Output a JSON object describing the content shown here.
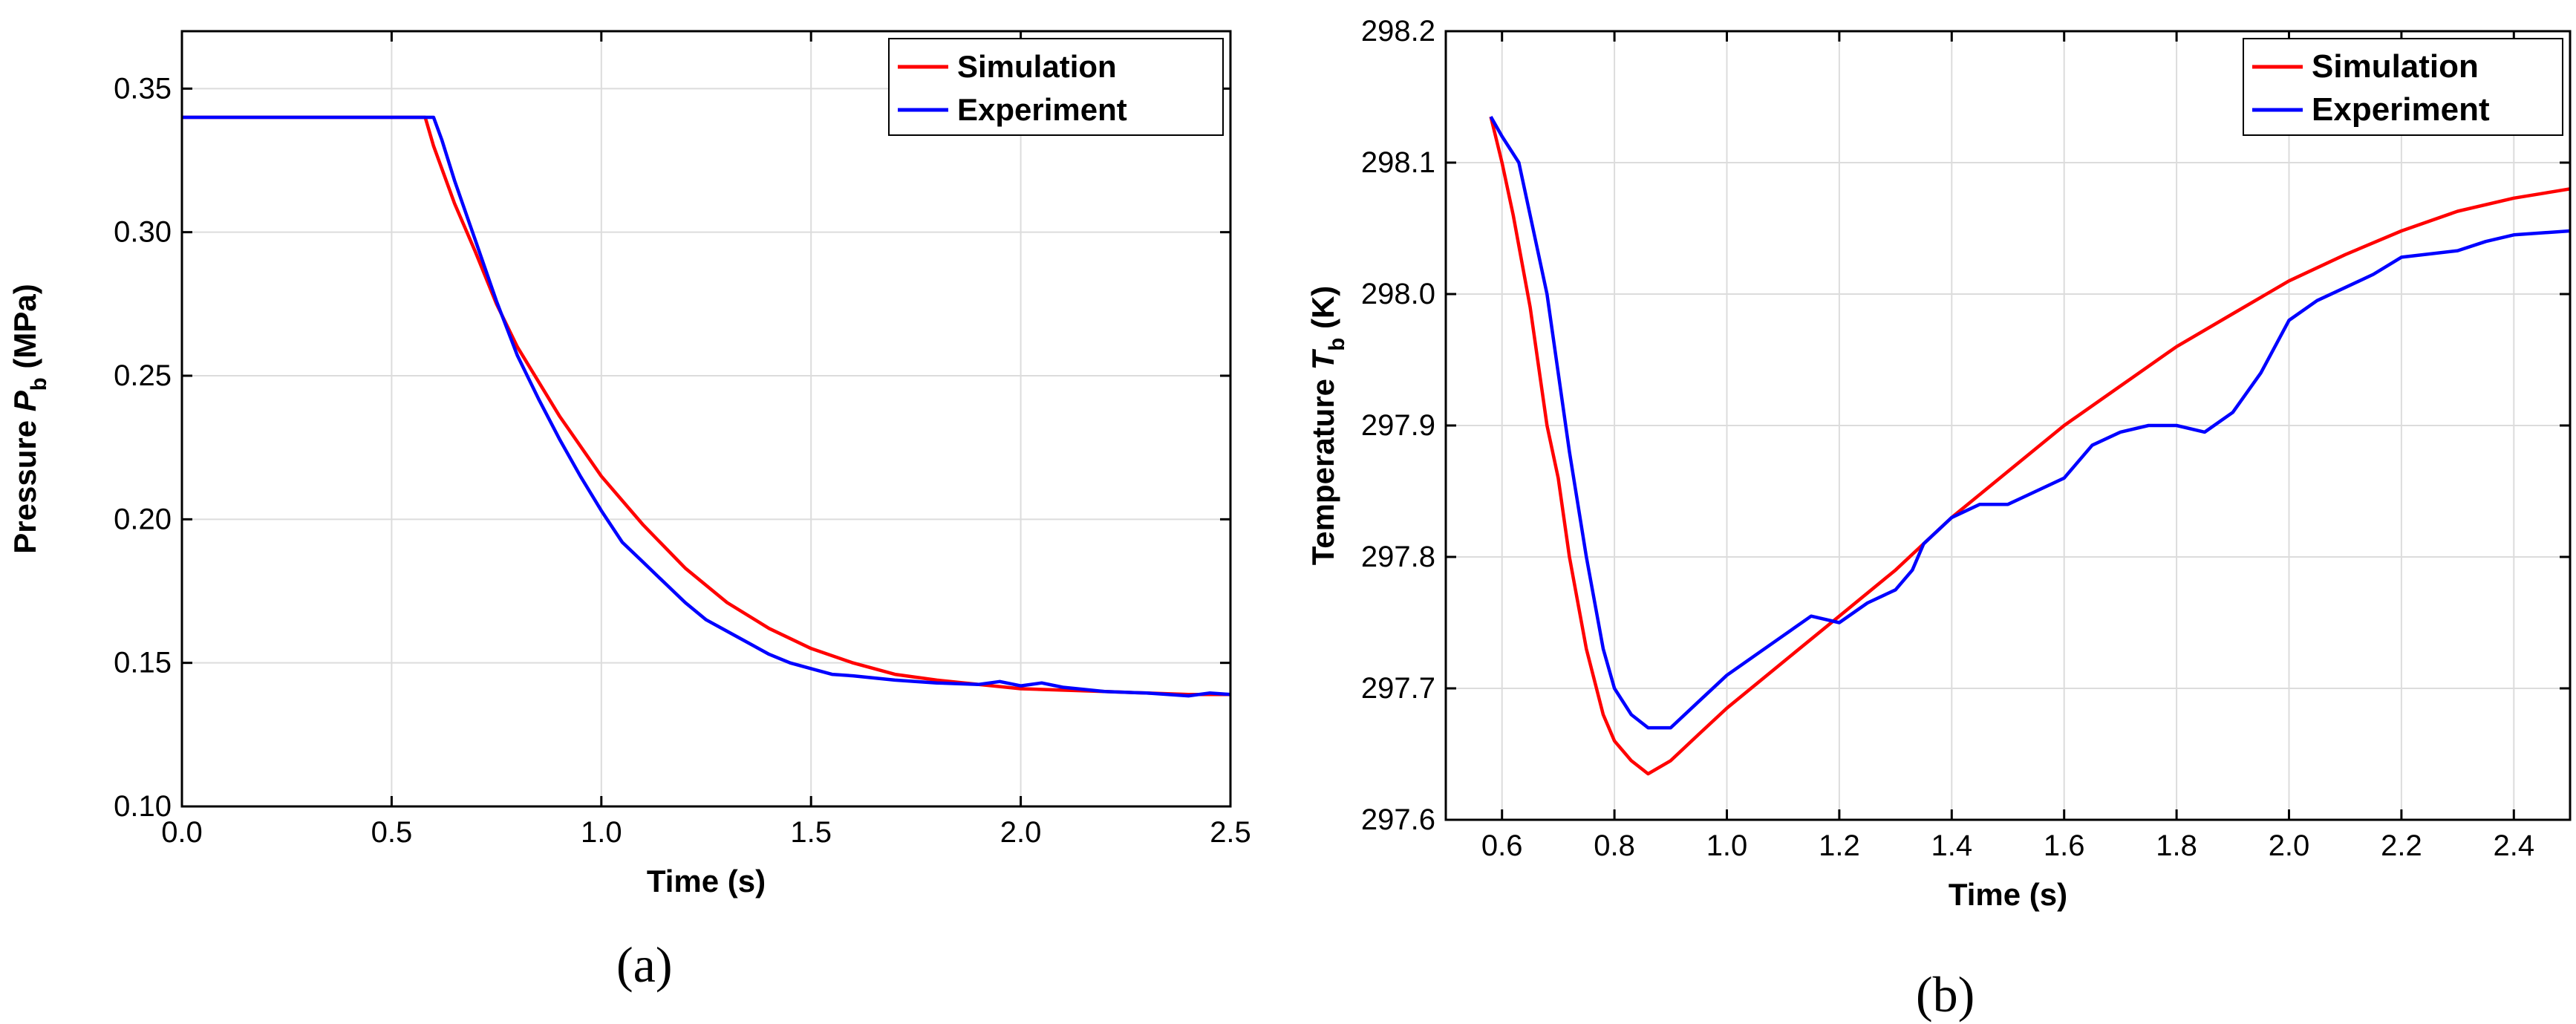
{
  "colors": {
    "simulation": "#ff0000",
    "experiment": "#0000ff",
    "grid": "#dcdcdc",
    "axis": "#000000"
  },
  "chart_data": [
    {
      "type": "line",
      "panel_label": "(a)",
      "xlabel": "Time (s)",
      "ylabel_prefix": "Pressure ",
      "ylabel_var": "P",
      "ylabel_sub": "b",
      "ylabel_suffix": " (MPa)",
      "xlim": [
        0,
        2.5
      ],
      "ylim": [
        0.1,
        0.37
      ],
      "xticks": [
        "0.0",
        "0.5",
        "1.0",
        "1.5",
        "2.0",
        "2.5"
      ],
      "yticks": [
        "0.10",
        "0.15",
        "0.20",
        "0.25",
        "0.30",
        "0.35"
      ],
      "grid": true,
      "legend_position": "top-right",
      "series": [
        {
          "name": "Simulation",
          "color": "#ff0000",
          "points": [
            [
              0,
              0.34
            ],
            [
              0.58,
              0.34
            ],
            [
              0.6,
              0.33
            ],
            [
              0.65,
              0.31
            ],
            [
              0.7,
              0.293
            ],
            [
              0.75,
              0.275
            ],
            [
              0.8,
              0.26
            ],
            [
              0.9,
              0.236
            ],
            [
              1.0,
              0.215
            ],
            [
              1.1,
              0.198
            ],
            [
              1.2,
              0.183
            ],
            [
              1.3,
              0.171
            ],
            [
              1.4,
              0.162
            ],
            [
              1.5,
              0.155
            ],
            [
              1.6,
              0.15
            ],
            [
              1.7,
              0.146
            ],
            [
              1.8,
              0.144
            ],
            [
              1.9,
              0.1425
            ],
            [
              2.0,
              0.141
            ],
            [
              2.1,
              0.1405
            ],
            [
              2.2,
              0.14
            ],
            [
              2.3,
              0.1395
            ],
            [
              2.4,
              0.139
            ],
            [
              2.5,
              0.139
            ]
          ]
        },
        {
          "name": "Experiment",
          "color": "#0000ff",
          "points": [
            [
              0,
              0.34
            ],
            [
              0.6,
              0.34
            ],
            [
              0.62,
              0.332
            ],
            [
              0.65,
              0.318
            ],
            [
              0.7,
              0.297
            ],
            [
              0.75,
              0.276
            ],
            [
              0.8,
              0.257
            ],
            [
              0.85,
              0.242
            ],
            [
              0.9,
              0.228
            ],
            [
              0.95,
              0.215
            ],
            [
              1.0,
              0.203
            ],
            [
              1.05,
              0.192
            ],
            [
              1.1,
              0.185
            ],
            [
              1.15,
              0.178
            ],
            [
              1.2,
              0.171
            ],
            [
              1.25,
              0.165
            ],
            [
              1.3,
              0.161
            ],
            [
              1.35,
              0.157
            ],
            [
              1.4,
              0.153
            ],
            [
              1.45,
              0.15
            ],
            [
              1.5,
              0.148
            ],
            [
              1.55,
              0.146
            ],
            [
              1.6,
              0.1455
            ],
            [
              1.7,
              0.144
            ],
            [
              1.8,
              0.143
            ],
            [
              1.9,
              0.1425
            ],
            [
              1.95,
              0.1435
            ],
            [
              2.0,
              0.142
            ],
            [
              2.05,
              0.143
            ],
            [
              2.1,
              0.1415
            ],
            [
              2.2,
              0.14
            ],
            [
              2.3,
              0.1395
            ],
            [
              2.4,
              0.1385
            ],
            [
              2.45,
              0.1395
            ],
            [
              2.5,
              0.139
            ]
          ]
        }
      ]
    },
    {
      "type": "line",
      "panel_label": "(b)",
      "xlabel": "Time (s)",
      "ylabel_prefix": "Temperature ",
      "ylabel_var": "T",
      "ylabel_sub": "b",
      "ylabel_suffix": " (K)",
      "xlim": [
        0.5,
        2.5
      ],
      "ylim": [
        297.6,
        298.2
      ],
      "xticks": [
        "0.6",
        "0.8",
        "1.0",
        "1.2",
        "1.4",
        "1.6",
        "1.8",
        "2.0",
        "2.2",
        "2.4"
      ],
      "yticks": [
        "297.6",
        "297.7",
        "297.8",
        "297.9",
        "298.0",
        "298.1",
        "298.2"
      ],
      "grid": true,
      "legend_position": "top-right",
      "series": [
        {
          "name": "Simulation",
          "color": "#ff0000",
          "points": [
            [
              0.58,
              298.135
            ],
            [
              0.6,
              298.1
            ],
            [
              0.62,
              298.06
            ],
            [
              0.65,
              297.99
            ],
            [
              0.68,
              297.9
            ],
            [
              0.7,
              297.86
            ],
            [
              0.72,
              297.8
            ],
            [
              0.75,
              297.73
            ],
            [
              0.78,
              297.68
            ],
            [
              0.8,
              297.66
            ],
            [
              0.83,
              297.645
            ],
            [
              0.86,
              297.635
            ],
            [
              0.9,
              297.645
            ],
            [
              0.95,
              297.665
            ],
            [
              1.0,
              297.685
            ],
            [
              1.1,
              297.72
            ],
            [
              1.2,
              297.755
            ],
            [
              1.3,
              297.79
            ],
            [
              1.4,
              297.83
            ],
            [
              1.5,
              297.865
            ],
            [
              1.6,
              297.9
            ],
            [
              1.7,
              297.93
            ],
            [
              1.8,
              297.96
            ],
            [
              1.9,
              297.985
            ],
            [
              2.0,
              298.01
            ],
            [
              2.1,
              298.03
            ],
            [
              2.2,
              298.048
            ],
            [
              2.3,
              298.063
            ],
            [
              2.4,
              298.073
            ],
            [
              2.5,
              298.08
            ]
          ]
        },
        {
          "name": "Experiment",
          "color": "#0000ff",
          "points": [
            [
              0.58,
              298.135
            ],
            [
              0.6,
              298.12
            ],
            [
              0.63,
              298.1
            ],
            [
              0.65,
              298.06
            ],
            [
              0.68,
              298.0
            ],
            [
              0.7,
              297.94
            ],
            [
              0.72,
              297.88
            ],
            [
              0.75,
              297.8
            ],
            [
              0.78,
              297.73
            ],
            [
              0.8,
              297.7
            ],
            [
              0.83,
              297.68
            ],
            [
              0.86,
              297.67
            ],
            [
              0.9,
              297.67
            ],
            [
              0.95,
              297.69
            ],
            [
              1.0,
              297.71
            ],
            [
              1.05,
              297.725
            ],
            [
              1.1,
              297.74
            ],
            [
              1.15,
              297.755
            ],
            [
              1.2,
              297.75
            ],
            [
              1.25,
              297.765
            ],
            [
              1.3,
              297.775
            ],
            [
              1.33,
              297.79
            ],
            [
              1.35,
              297.81
            ],
            [
              1.4,
              297.83
            ],
            [
              1.45,
              297.84
            ],
            [
              1.5,
              297.84
            ],
            [
              1.55,
              297.85
            ],
            [
              1.6,
              297.86
            ],
            [
              1.65,
              297.885
            ],
            [
              1.7,
              297.895
            ],
            [
              1.75,
              297.9
            ],
            [
              1.8,
              297.9
            ],
            [
              1.85,
              297.895
            ],
            [
              1.9,
              297.91
            ],
            [
              1.95,
              297.94
            ],
            [
              2.0,
              297.98
            ],
            [
              2.05,
              297.995
            ],
            [
              2.1,
              298.005
            ],
            [
              2.15,
              298.015
            ],
            [
              2.2,
              298.028
            ],
            [
              2.3,
              298.033
            ],
            [
              2.35,
              298.04
            ],
            [
              2.4,
              298.045
            ],
            [
              2.5,
              298.048
            ]
          ]
        }
      ]
    }
  ]
}
